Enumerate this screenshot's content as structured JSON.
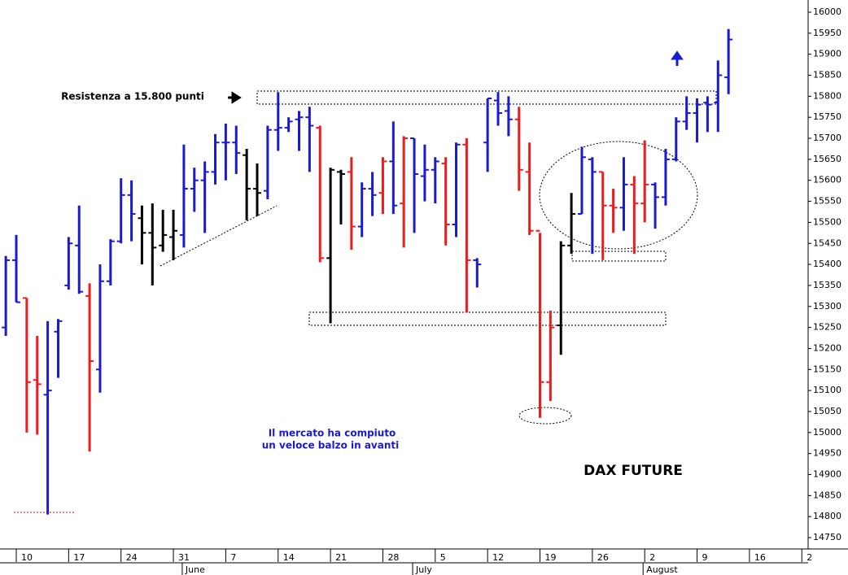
{
  "chart_data": {
    "type": "ohlc",
    "title": "DAX FUTURE",
    "annotations": [
      "Resistenza a 15.800 punti",
      "Il mercato ha compiuto",
      "un veloce balzo in avanti"
    ],
    "categories": [
      null,
      "10",
      null,
      null,
      null,
      null,
      "17",
      null,
      null,
      null,
      null,
      "24",
      null,
      null,
      null,
      null,
      "31",
      null,
      null,
      null,
      null,
      "7",
      null,
      null,
      null,
      null,
      "14",
      null,
      null,
      null,
      null,
      "21",
      null,
      null,
      null,
      null,
      "28",
      null,
      null,
      null,
      null,
      "5",
      null,
      null,
      null,
      null,
      "12",
      null,
      null,
      null,
      null,
      "19",
      null,
      null,
      null,
      null,
      "26",
      null,
      null,
      null,
      null,
      "2",
      null,
      null,
      null,
      null,
      "9",
      null,
      null,
      null,
      null,
      "16",
      null,
      null,
      null,
      null,
      "2"
    ],
    "months": [
      null,
      null,
      null,
      null,
      null,
      null,
      null,
      null,
      null,
      null,
      null,
      null,
      null,
      null,
      null,
      null,
      null,
      "June",
      null,
      null,
      null,
      null,
      null,
      null,
      null,
      null,
      null,
      null,
      null,
      null,
      null,
      null,
      null,
      null,
      null,
      null,
      null,
      null,
      null,
      "July",
      null,
      null,
      null,
      null,
      null,
      null,
      null,
      null,
      null,
      null,
      null,
      null,
      null,
      null,
      null,
      null,
      null,
      null,
      null,
      null,
      null,
      "August",
      null,
      null,
      null,
      null,
      null,
      null,
      null,
      null,
      null,
      null,
      null,
      null,
      null,
      null,
      null
    ],
    "open": [
      15250,
      15410,
      15320,
      15125,
      15090,
      15240,
      15350,
      15445,
      15325,
      15150,
      15360,
      15455,
      15565,
      15510,
      15475,
      15445,
      15465,
      15470,
      15580,
      15600,
      15620,
      15690,
      15690,
      15660,
      15580,
      15575,
      15720,
      15725,
      15745,
      15750,
      15725,
      15415,
      15620,
      15620,
      15490,
      15580,
      15570,
      15645,
      15545,
      15700,
      15610,
      15625,
      15640,
      15495,
      15685,
      15410,
      15690,
      15790,
      15765,
      15745,
      15620,
      15480,
      15120,
      15255,
      15445,
      15520,
      15650,
      15620,
      15540,
      15535,
      15590,
      15545,
      15590,
      15560,
      15650,
      15740,
      15760,
      15785,
      15785,
      15845,
      null,
      null,
      null,
      null,
      null,
      null,
      null
    ],
    "high": [
      15420,
      15470,
      15320,
      15230,
      15265,
      15270,
      15465,
      15540,
      15355,
      15400,
      15460,
      15605,
      15600,
      15540,
      15545,
      15530,
      15530,
      15685,
      15630,
      15645,
      15710,
      15735,
      15730,
      15675,
      15640,
      15730,
      15810,
      15750,
      15765,
      15775,
      15730,
      15630,
      15625,
      15655,
      15595,
      15620,
      15655,
      15740,
      15705,
      15700,
      15685,
      15655,
      15655,
      15690,
      15700,
      15415,
      15795,
      15810,
      15800,
      15775,
      15690,
      15475,
      15290,
      15455,
      15570,
      15680,
      15655,
      15620,
      15580,
      15655,
      15610,
      15695,
      15595,
      15675,
      15750,
      15800,
      15795,
      15800,
      15885,
      15960,
      null,
      null,
      null,
      null,
      null,
      null,
      null
    ],
    "low": [
      15230,
      15310,
      15000,
      14995,
      14805,
      15130,
      15340,
      15330,
      14955,
      15095,
      15350,
      15450,
      15455,
      15400,
      15350,
      15430,
      15410,
      15440,
      15525,
      15475,
      15590,
      15600,
      15615,
      15505,
      15515,
      15555,
      15670,
      15715,
      15670,
      15620,
      15405,
      15260,
      15495,
      15435,
      15465,
      15515,
      15520,
      15520,
      15440,
      15475,
      15550,
      15545,
      15445,
      15465,
      15285,
      15345,
      15620,
      15730,
      15705,
      15575,
      15470,
      15035,
      15075,
      15185,
      15425,
      15520,
      15425,
      15410,
      15475,
      15480,
      15425,
      15500,
      15485,
      15540,
      15645,
      15720,
      15690,
      15715,
      15715,
      15805,
      null,
      null,
      null,
      null,
      null,
      null,
      null
    ],
    "close": [
      15410,
      15310,
      15120,
      15115,
      15100,
      15265,
      15450,
      15335,
      15170,
      15360,
      15455,
      15565,
      15520,
      15475,
      15440,
      15470,
      15480,
      15580,
      15600,
      15620,
      15690,
      15690,
      15665,
      15580,
      15570,
      15720,
      15725,
      15740,
      15750,
      15730,
      15415,
      15625,
      15615,
      15490,
      15580,
      15565,
      15645,
      15540,
      15700,
      15615,
      15625,
      15645,
      15495,
      15685,
      15410,
      15400,
      15795,
      15760,
      15745,
      15625,
      15480,
      15120,
      15250,
      15445,
      15520,
      15655,
      15620,
      15540,
      15535,
      15590,
      15545,
      15590,
      15560,
      15650,
      15740,
      15760,
      15780,
      15780,
      15850,
      15935,
      null,
      null,
      null,
      null,
      null,
      null,
      null
    ],
    "colors": [
      "#1a1ad0",
      "#1a1ad0",
      "#ee1c1c",
      "#ee1c1c",
      "#1a1ad0",
      "#1a1ad0",
      "#1a1ad0",
      "#1a1ad0",
      "#ee1c1c",
      "#1a1ad0",
      "#1a1ad0",
      "#1a1ad0",
      "#1a1ad0",
      "#000000",
      "#000000",
      "#000000",
      "#000000",
      "#1a1ad0",
      "#1a1ad0",
      "#1a1ad0",
      "#1a1ad0",
      "#1a1ad0",
      "#1a1ad0",
      "#000000",
      "#000000",
      "#1a1ad0",
      "#1a1ad0",
      "#1a1ad0",
      "#1a1ad0",
      "#1a1ad0",
      "#ee1c1c",
      "#000000",
      "#000000",
      "#ee1c1c",
      "#1a1ad0",
      "#1a1ad0",
      "#ee1c1c",
      "#1a1ad0",
      "#ee1c1c",
      "#1a1ad0",
      "#1a1ad0",
      "#1a1ad0",
      "#ee1c1c",
      "#1a1ad0",
      "#ee1c1c",
      "#1a1ad0",
      "#1a1ad0",
      "#1a1ad0",
      "#1a1ad0",
      "#ee1c1c",
      "#ee1c1c",
      "#ee1c1c",
      "#ee1c1c",
      "#000000",
      "#000000",
      "#1a1ad0",
      "#1a1ad0",
      "#ee1c1c",
      "#ee1c1c",
      "#1a1ad0",
      "#ee1c1c",
      "#ee1c1c",
      "#1a1ad0",
      "#1a1ad0",
      "#1a1ad0",
      "#1a1ad0",
      "#1a1ad0",
      "#1a1ad0",
      "#1a1ad0",
      "#1a1ad0",
      null,
      null,
      null,
      null,
      null,
      null,
      null
    ],
    "ylim": [
      14723,
      16029
    ],
    "yticks": [
      14750,
      14800,
      14850,
      14900,
      14950,
      15000,
      15050,
      15100,
      15150,
      15200,
      15250,
      15300,
      15350,
      15400,
      15450,
      15500,
      15550,
      15600,
      15650,
      15700,
      15750,
      15800,
      15850,
      15900,
      15950,
      16000
    ]
  }
}
